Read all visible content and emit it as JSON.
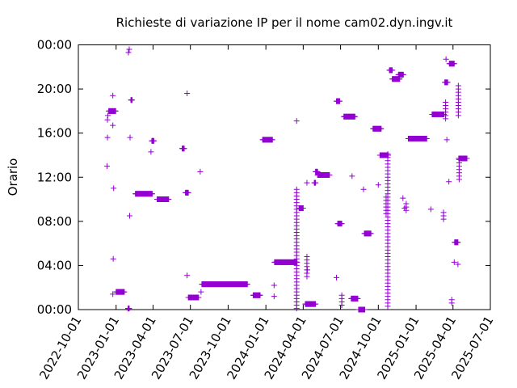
{
  "chart_data": {
    "type": "scatter",
    "title": "Richieste di variazione IP per il nome cam02.dyn.ingv.it",
    "ylabel": "Orario",
    "xlabel": "",
    "x_type": "date",
    "xlim": [
      "2022-10-01",
      "2025-07-01"
    ],
    "ylim_hours": [
      0,
      24
    ],
    "x_ticks": [
      "2022-10-01",
      "2023-01-01",
      "2023-04-01",
      "2023-07-01",
      "2023-10-01",
      "2024-01-01",
      "2024-04-01",
      "2024-07-01",
      "2024-10-01",
      "2025-01-01",
      "2025-04-01",
      "2025-07-01"
    ],
    "y_ticks": [
      {
        "hour": 0,
        "label": "00:00"
      },
      {
        "hour": 4,
        "label": "04:00"
      },
      {
        "hour": 8,
        "label": "08:00"
      },
      {
        "hour": 12,
        "label": "12:00"
      },
      {
        "hour": 16,
        "label": "16:00"
      },
      {
        "hour": 20,
        "label": "20:00"
      },
      {
        "hour": 24,
        "label": "00:00"
      }
    ],
    "grid": false,
    "marker": "+",
    "color": "#9400d3",
    "series": [
      {
        "points": [
          {
            "date": "2022-12-10",
            "hour": 13.0
          },
          {
            "date": "2022-12-11",
            "hour": 15.6
          },
          {
            "date": "2022-12-11",
            "hour": 17.2
          },
          {
            "date": "2022-12-12",
            "hour": 17.6
          },
          {
            "date": "2022-12-24",
            "hour": 19.4
          },
          {
            "date": "2022-12-24",
            "hour": 16.7
          },
          {
            "date": "2022-12-26",
            "hour": 11.0
          },
          {
            "date": "2022-12-24",
            "hour": 1.4
          },
          {
            "date": "2022-12-25",
            "hour": 4.6
          },
          {
            "date": "2023-01-31",
            "hour": 23.3
          },
          {
            "date": "2023-02-02",
            "hour": 23.6
          },
          {
            "date": "2023-02-03",
            "hour": 8.5
          },
          {
            "date": "2023-02-04",
            "hour": 15.6
          },
          {
            "date": "2023-03-27",
            "hour": 14.3
          },
          {
            "date": "2023-06-23",
            "hour": 3.1
          },
          {
            "date": "2023-06-23",
            "hour": 19.6
          },
          {
            "date": "2023-07-25",
            "hour": 12.5
          },
          {
            "date": "2023-07-27",
            "hour": 1.6
          },
          {
            "date": "2024-01-21",
            "hour": 1.2
          },
          {
            "date": "2024-01-21",
            "hour": 2.2
          },
          {
            "date": "2024-03-16",
            "hour": 17.1
          },
          {
            "date": "2024-04-10",
            "hour": 11.5
          },
          {
            "date": "2024-04-11",
            "hour": 3.6
          },
          {
            "date": "2024-06-21",
            "hour": 2.9
          },
          {
            "date": "2024-07-29",
            "hour": 12.1
          },
          {
            "date": "2024-08-26",
            "hour": 10.9
          },
          {
            "date": "2024-10-01",
            "hour": 11.3
          },
          {
            "date": "2024-11-30",
            "hour": 10.1
          },
          {
            "date": "2024-12-04",
            "hour": 9.2
          },
          {
            "date": "2025-02-06",
            "hour": 9.1
          },
          {
            "date": "2025-03-15",
            "hour": 22.7
          },
          {
            "date": "2025-03-17",
            "hour": 15.4
          },
          {
            "date": "2025-03-22",
            "hour": 11.6
          },
          {
            "date": "2025-04-04",
            "hour": 4.3
          },
          {
            "date": "2025-04-13",
            "hour": 4.1
          }
        ],
        "runs": [
          {
            "date": "2022-12-14",
            "end": "2022-12-31",
            "hour": 18.0
          },
          {
            "date": "2023-01-01",
            "end": "2023-01-21",
            "hour": 1.6
          },
          {
            "date": "2023-01-30",
            "end": "2023-02-02",
            "hour": 0.1
          },
          {
            "date": "2023-02-06",
            "end": "2023-02-09",
            "hour": 19.0
          },
          {
            "date": "2023-02-17",
            "end": "2023-03-30",
            "hour": 10.5
          },
          {
            "date": "2023-03-29",
            "end": "2023-04-03",
            "hour": 15.3
          },
          {
            "date": "2023-04-11",
            "end": "2023-05-09",
            "hour": 10.0
          },
          {
            "date": "2023-06-11",
            "end": "2023-06-16",
            "hour": 14.6
          },
          {
            "date": "2023-06-19",
            "end": "2023-06-26",
            "hour": 10.6
          },
          {
            "date": "2023-06-26",
            "end": "2023-07-21",
            "hour": 1.1
          },
          {
            "date": "2023-07-29",
            "end": "2023-11-17",
            "hour": 2.3
          },
          {
            "date": "2023-12-01",
            "end": "2023-12-18",
            "hour": 1.3
          },
          {
            "date": "2023-12-24",
            "end": "2024-01-17",
            "hour": 15.4
          },
          {
            "date": "2024-01-22",
            "end": "2024-03-17",
            "hour": 4.3
          },
          {
            "date": "2024-03-22",
            "end": "2024-04-01",
            "hour": 9.2
          },
          {
            "date": "2024-04-06",
            "end": "2024-05-01",
            "hour": 0.5
          },
          {
            "date": "2024-04-28",
            "end": "2024-05-01",
            "hour": 11.5
          },
          {
            "date": "2024-05-01",
            "end": "2024-05-06",
            "hour": 12.5
          },
          {
            "date": "2024-05-06",
            "end": "2024-06-04",
            "hour": 12.2
          },
          {
            "date": "2024-06-21",
            "end": "2024-06-29",
            "hour": 18.9
          },
          {
            "date": "2024-06-24",
            "end": "2024-07-04",
            "hour": 7.8
          },
          {
            "date": "2024-07-09",
            "end": "2024-08-05",
            "hour": 17.5
          },
          {
            "date": "2024-07-27",
            "end": "2024-08-12",
            "hour": 1.0
          },
          {
            "date": "2024-08-14",
            "end": "2024-08-29",
            "hour": 0.0
          },
          {
            "date": "2024-08-28",
            "end": "2024-09-13",
            "hour": 6.9
          },
          {
            "date": "2024-09-18",
            "end": "2024-10-08",
            "hour": 16.4
          },
          {
            "date": "2024-10-05",
            "end": "2024-10-25",
            "hour": 14.0
          },
          {
            "date": "2024-10-28",
            "end": "2024-11-04",
            "hour": 21.7
          },
          {
            "date": "2024-11-04",
            "end": "2024-11-22",
            "hour": 20.9
          },
          {
            "date": "2024-11-19",
            "end": "2024-12-01",
            "hour": 21.3
          },
          {
            "date": "2024-12-13",
            "end": "2025-01-27",
            "hour": 15.5
          },
          {
            "date": "2025-02-09",
            "end": "2025-03-10",
            "hour": 17.7
          },
          {
            "date": "2025-03-12",
            "end": "2025-03-19",
            "hour": 20.6
          },
          {
            "date": "2025-03-23",
            "end": "2025-04-04",
            "hour": 22.3
          },
          {
            "date": "2025-04-05",
            "end": "2025-04-13",
            "hour": 6.1
          },
          {
            "date": "2025-04-15",
            "end": "2025-05-05",
            "hour": 13.7
          }
        ],
        "columns": [
          {
            "date": "2024-03-16",
            "from": 0.1,
            "to": 10.9
          },
          {
            "date": "2024-04-10",
            "from": 3.0,
            "to": 5.0
          },
          {
            "date": "2024-07-04",
            "from": 0.4,
            "to": 1.3
          },
          {
            "date": "2024-10-24",
            "from": 0.3,
            "to": 14.2
          },
          {
            "date": "2024-10-20",
            "from": 8.7,
            "to": 10.2
          },
          {
            "date": "2024-12-08",
            "from": 9.0,
            "to": 9.8
          },
          {
            "date": "2025-03-14",
            "from": 17.3,
            "to": 18.8
          },
          {
            "date": "2025-03-09",
            "from": 8.2,
            "to": 8.8
          },
          {
            "date": "2025-03-29",
            "from": 0.6,
            "to": 1.1
          },
          {
            "date": "2025-04-14",
            "from": 17.6,
            "to": 20.3
          },
          {
            "date": "2025-04-16",
            "from": 11.8,
            "to": 13.7
          }
        ]
      }
    ]
  }
}
